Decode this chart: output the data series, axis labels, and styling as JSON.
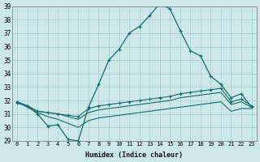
{
  "xlabel": "Humidex (Indice chaleur)",
  "xlim": [
    -0.5,
    23.5
  ],
  "ylim": [
    29,
    39
  ],
  "xticks": [
    0,
    1,
    2,
    3,
    4,
    5,
    6,
    7,
    8,
    9,
    10,
    11,
    12,
    13,
    14,
    15,
    16,
    17,
    18,
    19,
    20,
    21,
    22,
    23
  ],
  "yticks": [
    29,
    30,
    31,
    32,
    33,
    34,
    35,
    36,
    37,
    38,
    39
  ],
  "bg_color": "#cce8e8",
  "line_color": "#1a6b6b",
  "grid_color": "#aacfcf",
  "line1_x": [
    0,
    1,
    2,
    3,
    4,
    5,
    6,
    7,
    8,
    9,
    10,
    11,
    12,
    13,
    14,
    15,
    16,
    17,
    18,
    19,
    20,
    21,
    22,
    23
  ],
  "line1_y": [
    31.8,
    31.6,
    31.0,
    30.1,
    30.2,
    29.1,
    29.0,
    31.5,
    33.2,
    35.0,
    35.8,
    37.0,
    37.5,
    38.3,
    39.2,
    38.8,
    37.2,
    35.7,
    35.3,
    33.8,
    33.2,
    32.2,
    32.5,
    31.5
  ],
  "line2_x": [
    0,
    1,
    2,
    3,
    4,
    5,
    6,
    7,
    8,
    9,
    10,
    11,
    12,
    13,
    14,
    15,
    16,
    17,
    18,
    19,
    20,
    21,
    22,
    23
  ],
  "line2_y": [
    31.9,
    31.6,
    31.2,
    31.1,
    31.0,
    30.9,
    30.8,
    31.4,
    31.6,
    31.7,
    31.8,
    31.9,
    32.0,
    32.1,
    32.2,
    32.3,
    32.5,
    32.6,
    32.7,
    32.8,
    32.9,
    31.9,
    32.1,
    31.6
  ],
  "line3_x": [
    0,
    1,
    2,
    3,
    4,
    5,
    6,
    7,
    8,
    9,
    10,
    11,
    12,
    13,
    14,
    15,
    16,
    17,
    18,
    19,
    20,
    21,
    22,
    23
  ],
  "line3_y": [
    31.9,
    31.6,
    31.2,
    31.1,
    31.0,
    30.8,
    30.6,
    31.1,
    31.3,
    31.4,
    31.5,
    31.6,
    31.7,
    31.8,
    31.9,
    32.0,
    32.2,
    32.3,
    32.4,
    32.5,
    32.6,
    31.7,
    31.9,
    31.5
  ],
  "line4_x": [
    0,
    1,
    2,
    3,
    4,
    5,
    6,
    7,
    8,
    9,
    10,
    11,
    12,
    13,
    14,
    15,
    16,
    17,
    18,
    19,
    20,
    21,
    22,
    23
  ],
  "line4_y": [
    31.9,
    31.5,
    31.1,
    30.8,
    30.6,
    30.3,
    30.0,
    30.5,
    30.7,
    30.8,
    30.9,
    31.0,
    31.1,
    31.2,
    31.3,
    31.4,
    31.5,
    31.6,
    31.7,
    31.8,
    31.9,
    31.2,
    31.4,
    31.4
  ]
}
